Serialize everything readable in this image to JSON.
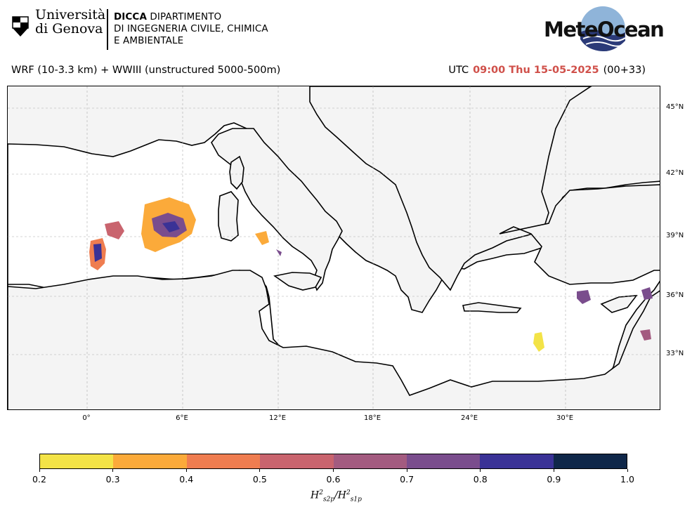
{
  "header": {
    "university": {
      "line1": "Università",
      "line2": "di Genova"
    },
    "department": {
      "acronym": "DICCA",
      "line1": "DIPARTIMENTO",
      "line2": "DI INGEGNERIA CIVILE, CHIMICA",
      "line3": "E AMBIENTALE"
    },
    "brand": "MeteOcean",
    "model_title": "WRF (10-3.3 km) + WWIII (unstructured 5000-500m)",
    "utc_label": "UTC",
    "time": "09:00 Thu 15-05-2025",
    "forecast_step": "(00+33)",
    "time_color": "#d0504a"
  },
  "map": {
    "extent": {
      "lon": [
        -5,
        36
      ],
      "lat": [
        30,
        46
      ]
    },
    "lat_labels": [
      "45°N",
      "42°N",
      "39°N",
      "36°N",
      "33°N"
    ],
    "lon_labels": [
      "0°",
      "6°E",
      "12°E",
      "18°E",
      "24°E",
      "30°E"
    ],
    "land_color": "#f4f4f4",
    "sea_color": "#ffffff"
  },
  "colorbar": {
    "ticks": [
      "0.2",
      "0.3",
      "0.4",
      "0.5",
      "0.6",
      "0.7",
      "0.8",
      "0.9",
      "1.0"
    ],
    "colors": [
      "#f3e347",
      "#fbaa3a",
      "#ef7d50",
      "#c9646e",
      "#a35b80",
      "#7a4d8d",
      "#3a3296",
      "#0f2749"
    ],
    "label_main": "H",
    "label_sup": "2",
    "label_sub1": "s2p",
    "label_sub2": "s1p"
  }
}
